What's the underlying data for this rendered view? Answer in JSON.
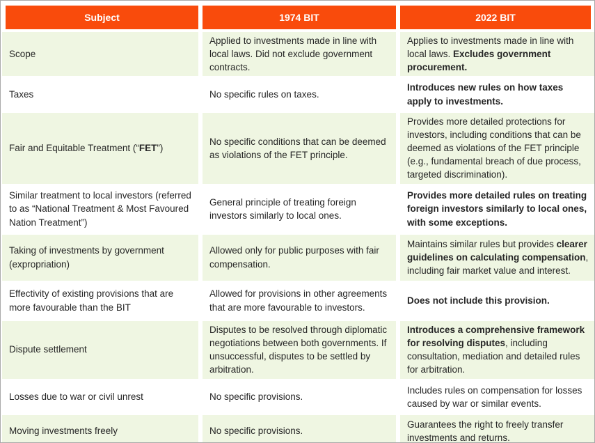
{
  "colors": {
    "header_bg": "#f94b0c",
    "header_text": "#ffffff",
    "row_green": "#eff6e2",
    "row_white": "#ffffff",
    "body_text": "#262626",
    "outer_border": "#a9a9a9"
  },
  "table": {
    "columns": [
      {
        "label": "Subject"
      },
      {
        "label": "1974 BIT"
      },
      {
        "label": "2022 BIT"
      }
    ],
    "rows": [
      {
        "subject": [
          {
            "text": "Scope"
          }
        ],
        "bit1974": [
          {
            "text": "Applied to investments made in line with local laws. Did not exclude government contracts."
          }
        ],
        "bit2022": [
          {
            "text": "Applies to investments made in line with local laws. "
          },
          {
            "text": "Excludes government procurement.",
            "bold": true
          }
        ]
      },
      {
        "subject": [
          {
            "text": "Taxes"
          }
        ],
        "bit1974": [
          {
            "text": "No specific rules on taxes."
          }
        ],
        "bit2022": [
          {
            "text": "Introduces new rules on how taxes apply to investments.",
            "bold": true
          }
        ]
      },
      {
        "subject": [
          {
            "text": "Fair and Equitable Treatment (“"
          },
          {
            "text": "FET",
            "bold": true
          },
          {
            "text": "”)"
          }
        ],
        "bit1974": [
          {
            "text": "No specific conditions that can be deemed as violations of the FET principle."
          }
        ],
        "bit2022": [
          {
            "text": "Provides more detailed protections for investors, including conditions that can be deemed as violations of the FET principle (e.g., fundamental breach of due process, targeted discrimination)."
          }
        ]
      },
      {
        "subject": [
          {
            "text": "Similar treatment to local investors (referred to as “National Treatment & Most Favoured Nation Treatment”)"
          }
        ],
        "bit1974": [
          {
            "text": "General principle of treating foreign investors similarly to local ones."
          }
        ],
        "bit2022": [
          {
            "text": "Provides more detailed rules on treating foreign investors similarly to local ones, with some exceptions.",
            "bold": true
          }
        ]
      },
      {
        "subject": [
          {
            "text": "Taking of investments by government (expropriation)"
          }
        ],
        "bit1974": [
          {
            "text": "Allowed only for public purposes with fair compensation."
          }
        ],
        "bit2022": [
          {
            "text": "Maintains similar rules but provides "
          },
          {
            "text": "clearer guidelines on calculating compensation",
            "bold": true
          },
          {
            "text": ", including fair market value and interest."
          }
        ]
      },
      {
        "subject": [
          {
            "text": "Effectivity of existing provisions that are more favourable than the BIT"
          }
        ],
        "bit1974": [
          {
            "text": "Allowed for provisions in other agreements that are more favourable to investors."
          }
        ],
        "bit2022": [
          {
            "text": "Does not include this provision.",
            "bold": true
          }
        ]
      },
      {
        "subject": [
          {
            "text": "Dispute settlement"
          }
        ],
        "bit1974": [
          {
            "text": "Disputes to be resolved through diplomatic negotiations between both governments. If unsuccessful, disputes to be settled by arbitration."
          }
        ],
        "bit2022": [
          {
            "text": "Introduces a comprehensive framework for resolving disputes",
            "bold": true
          },
          {
            "text": ", including consultation, mediation and detailed rules for arbitration."
          }
        ]
      },
      {
        "subject": [
          {
            "text": "Losses due to war or civil unrest"
          }
        ],
        "bit1974": [
          {
            "text": "No specific provisions."
          }
        ],
        "bit2022": [
          {
            "text": "Includes rules on compensation for losses caused by war or similar events."
          }
        ]
      },
      {
        "subject": [
          {
            "text": "Moving investments freely"
          }
        ],
        "bit1974": [
          {
            "text": "No specific provisions."
          }
        ],
        "bit2022": [
          {
            "text": "Guarantees the right to freely transfer investments and returns."
          }
        ]
      }
    ]
  }
}
